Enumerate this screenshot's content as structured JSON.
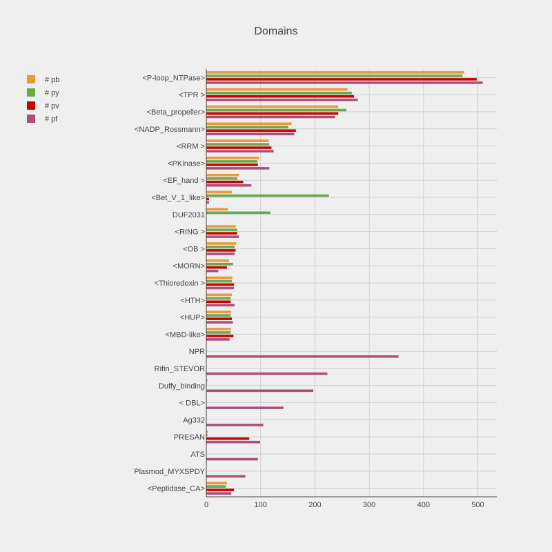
{
  "chart_data": {
    "type": "bar",
    "orientation": "horizontal",
    "title": "Domains",
    "xlabel": "",
    "ylabel": "",
    "xlim": [
      0,
      535
    ],
    "xticks": [
      0,
      100,
      200,
      300,
      400,
      500
    ],
    "grid": true,
    "legend_position": "top-left",
    "categories": [
      "<P-loop_NTPase>",
      "<TPR >",
      "<Beta_propeller>",
      "<NADP_Rossmann>",
      "<RRM >",
      "<PKinase>",
      "<EF_hand >",
      "<Bet_V_1_like>",
      "DUF2031",
      "<RING >",
      "<OB >",
      "<MORN>",
      "<Thioredoxin >",
      "<HTH>",
      "<HUP>",
      "<MBD-like>",
      "NPR",
      "Rifin_STEVOR",
      "Duffy_binding",
      "< DBL>",
      "Ag332",
      "PRESAN",
      "ATS",
      "Plasmod_MYXSPDY",
      "<Peptidase_CA>"
    ],
    "series": [
      {
        "name": "# pb",
        "color": "#f0963c",
        "values": [
          475,
          260,
          243,
          157,
          115,
          97,
          60,
          47,
          40,
          54,
          55,
          42,
          48,
          47,
          46,
          45,
          0,
          0,
          2,
          0,
          0,
          3,
          0,
          0,
          38
        ]
      },
      {
        "name": "# py",
        "color": "#6aaa4e",
        "values": [
          472,
          268,
          258,
          151,
          116,
          94,
          57,
          226,
          118,
          57,
          52,
          49,
          47,
          45,
          45,
          45,
          0,
          0,
          1,
          0,
          0,
          2,
          0,
          0,
          36
        ]
      },
      {
        "name": "# pv",
        "color": "#cc0000",
        "values": [
          498,
          272,
          243,
          165,
          120,
          95,
          68,
          5,
          0,
          57,
          54,
          38,
          51,
          45,
          47,
          50,
          0,
          0,
          0,
          0,
          0,
          79,
          0,
          0,
          51
        ]
      },
      {
        "name": "# pf",
        "color": "#a8517a",
        "values": [
          509,
          279,
          237,
          162,
          124,
          116,
          83,
          5,
          0,
          60,
          52,
          22,
          51,
          52,
          49,
          43,
          354,
          223,
          197,
          142,
          105,
          99,
          95,
          72,
          46
        ]
      }
    ]
  }
}
